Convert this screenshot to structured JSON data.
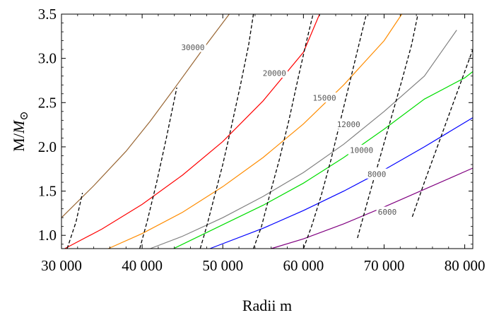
{
  "chart_data": {
    "type": "line",
    "xlabel": "Radii  m",
    "ylabel_main": "M/",
    "ylabel_italic": "M",
    "ylabel_sub": "⊙",
    "xlim": [
      30000,
      81000
    ],
    "ylim": [
      0.85,
      3.5
    ],
    "x_ticks": [
      30000,
      40000,
      50000,
      60000,
      70000,
      80000
    ],
    "x_tick_labels": [
      "30 000",
      "40 000",
      "50 000",
      "60 000",
      "70 000",
      "80 000"
    ],
    "y_ticks": [
      1.0,
      1.5,
      2.0,
      2.5,
      3.0,
      3.5
    ],
    "y_tick_labels": [
      "1.0",
      "1.5",
      "2.0",
      "2.5",
      "3.0",
      "3.5"
    ],
    "grid": false,
    "series": [
      {
        "name": "30000",
        "color": "#996633",
        "x": [
          30000,
          34000,
          38000,
          41000,
          44000,
          47500,
          50800
        ],
        "y": [
          1.2,
          1.56,
          1.95,
          2.29,
          2.66,
          3.1,
          3.5
        ]
      },
      {
        "name": "20000",
        "color": "#ff0000",
        "x": [
          30400,
          35000,
          40000,
          45000,
          50000,
          55000,
          60000,
          62000
        ],
        "y": [
          0.85,
          1.07,
          1.35,
          1.68,
          2.06,
          2.52,
          3.07,
          3.5
        ]
      },
      {
        "name": "15000",
        "color": "#ff8c00",
        "x": [
          35800,
          40000,
          45000,
          50000,
          55000,
          60000,
          65000,
          70000,
          72200
        ],
        "y": [
          0.85,
          1.02,
          1.26,
          1.55,
          1.88,
          2.26,
          2.7,
          3.2,
          3.5
        ]
      },
      {
        "name": "12000",
        "color": "#808080",
        "x": [
          41000,
          45000,
          50000,
          55000,
          60000,
          65000,
          70000,
          75000,
          79000
        ],
        "y": [
          0.85,
          0.99,
          1.2,
          1.44,
          1.71,
          2.03,
          2.4,
          2.8,
          3.32
        ]
      },
      {
        "name": "10000",
        "color": "#00dd00",
        "x": [
          43900,
          50000,
          55000,
          60000,
          65000,
          70000,
          75000,
          80000,
          81000
        ],
        "y": [
          0.85,
          1.12,
          1.34,
          1.59,
          1.88,
          2.2,
          2.54,
          2.78,
          2.85
        ]
      },
      {
        "name": "8000",
        "color": "#0000ff",
        "x": [
          48400,
          55000,
          60000,
          65000,
          70000,
          75000,
          81000
        ],
        "y": [
          0.85,
          1.08,
          1.28,
          1.5,
          1.74,
          2.0,
          2.33
        ]
      },
      {
        "name": "6000",
        "color": "#800080",
        "x": [
          56000,
          60000,
          65000,
          70000,
          75000,
          81000
        ],
        "y": [
          0.85,
          0.96,
          1.13,
          1.32,
          1.52,
          1.76
        ]
      },
      {
        "name": "",
        "color": "#000000",
        "dashed": true,
        "x": [
          30700,
          31800,
          32600
        ],
        "y": [
          0.85,
          1.15,
          1.48
        ]
      },
      {
        "name": "",
        "color": "#000000",
        "dashed": true,
        "x": [
          39700,
          40600,
          41800,
          43000,
          44300
        ],
        "y": [
          0.85,
          1.15,
          1.6,
          2.1,
          2.67
        ]
      },
      {
        "name": "",
        "color": "#000000",
        "dashed": true,
        "x": [
          47200,
          48000,
          49000,
          50000,
          51000,
          52200,
          53200,
          53800
        ],
        "y": [
          0.85,
          1.1,
          1.45,
          1.8,
          2.2,
          2.7,
          3.15,
          3.5
        ]
      },
      {
        "name": "",
        "color": "#000000",
        "dashed": true,
        "x": [
          53800,
          54800,
          55800,
          57000,
          58200,
          59400,
          60400,
          61200
        ],
        "y": [
          0.85,
          1.1,
          1.45,
          1.85,
          2.3,
          2.8,
          3.2,
          3.5
        ]
      },
      {
        "name": "",
        "color": "#000000",
        "dashed": true,
        "x": [
          60000,
          61000,
          62200,
          63400,
          64600,
          65800,
          67000,
          67800
        ],
        "y": [
          0.85,
          1.1,
          1.45,
          1.85,
          2.3,
          2.75,
          3.2,
          3.5
        ]
      },
      {
        "name": "",
        "color": "#000000",
        "dashed": true,
        "x": [
          66700,
          68000,
          69400,
          70800,
          72200,
          73400,
          74200
        ],
        "y": [
          0.97,
          1.4,
          1.85,
          2.3,
          2.75,
          3.15,
          3.5
        ]
      },
      {
        "name": "",
        "color": "#000000",
        "dashed": true,
        "x": [
          73500,
          75000,
          76600,
          78200,
          79800,
          81000
        ],
        "y": [
          1.21,
          1.6,
          2.0,
          2.4,
          2.8,
          3.1
        ]
      }
    ],
    "curve_labels": [
      {
        "text": "30000",
        "x": 46300,
        "y": 3.12
      },
      {
        "text": "20000",
        "x": 56400,
        "y": 2.83
      },
      {
        "text": "15000",
        "x": 62600,
        "y": 2.55
      },
      {
        "text": "12000",
        "x": 65600,
        "y": 2.25
      },
      {
        "text": "10000",
        "x": 67200,
        "y": 1.96
      },
      {
        "text": "8000",
        "x": 69100,
        "y": 1.69
      },
      {
        "text": "6000",
        "x": 70400,
        "y": 1.26
      }
    ]
  }
}
